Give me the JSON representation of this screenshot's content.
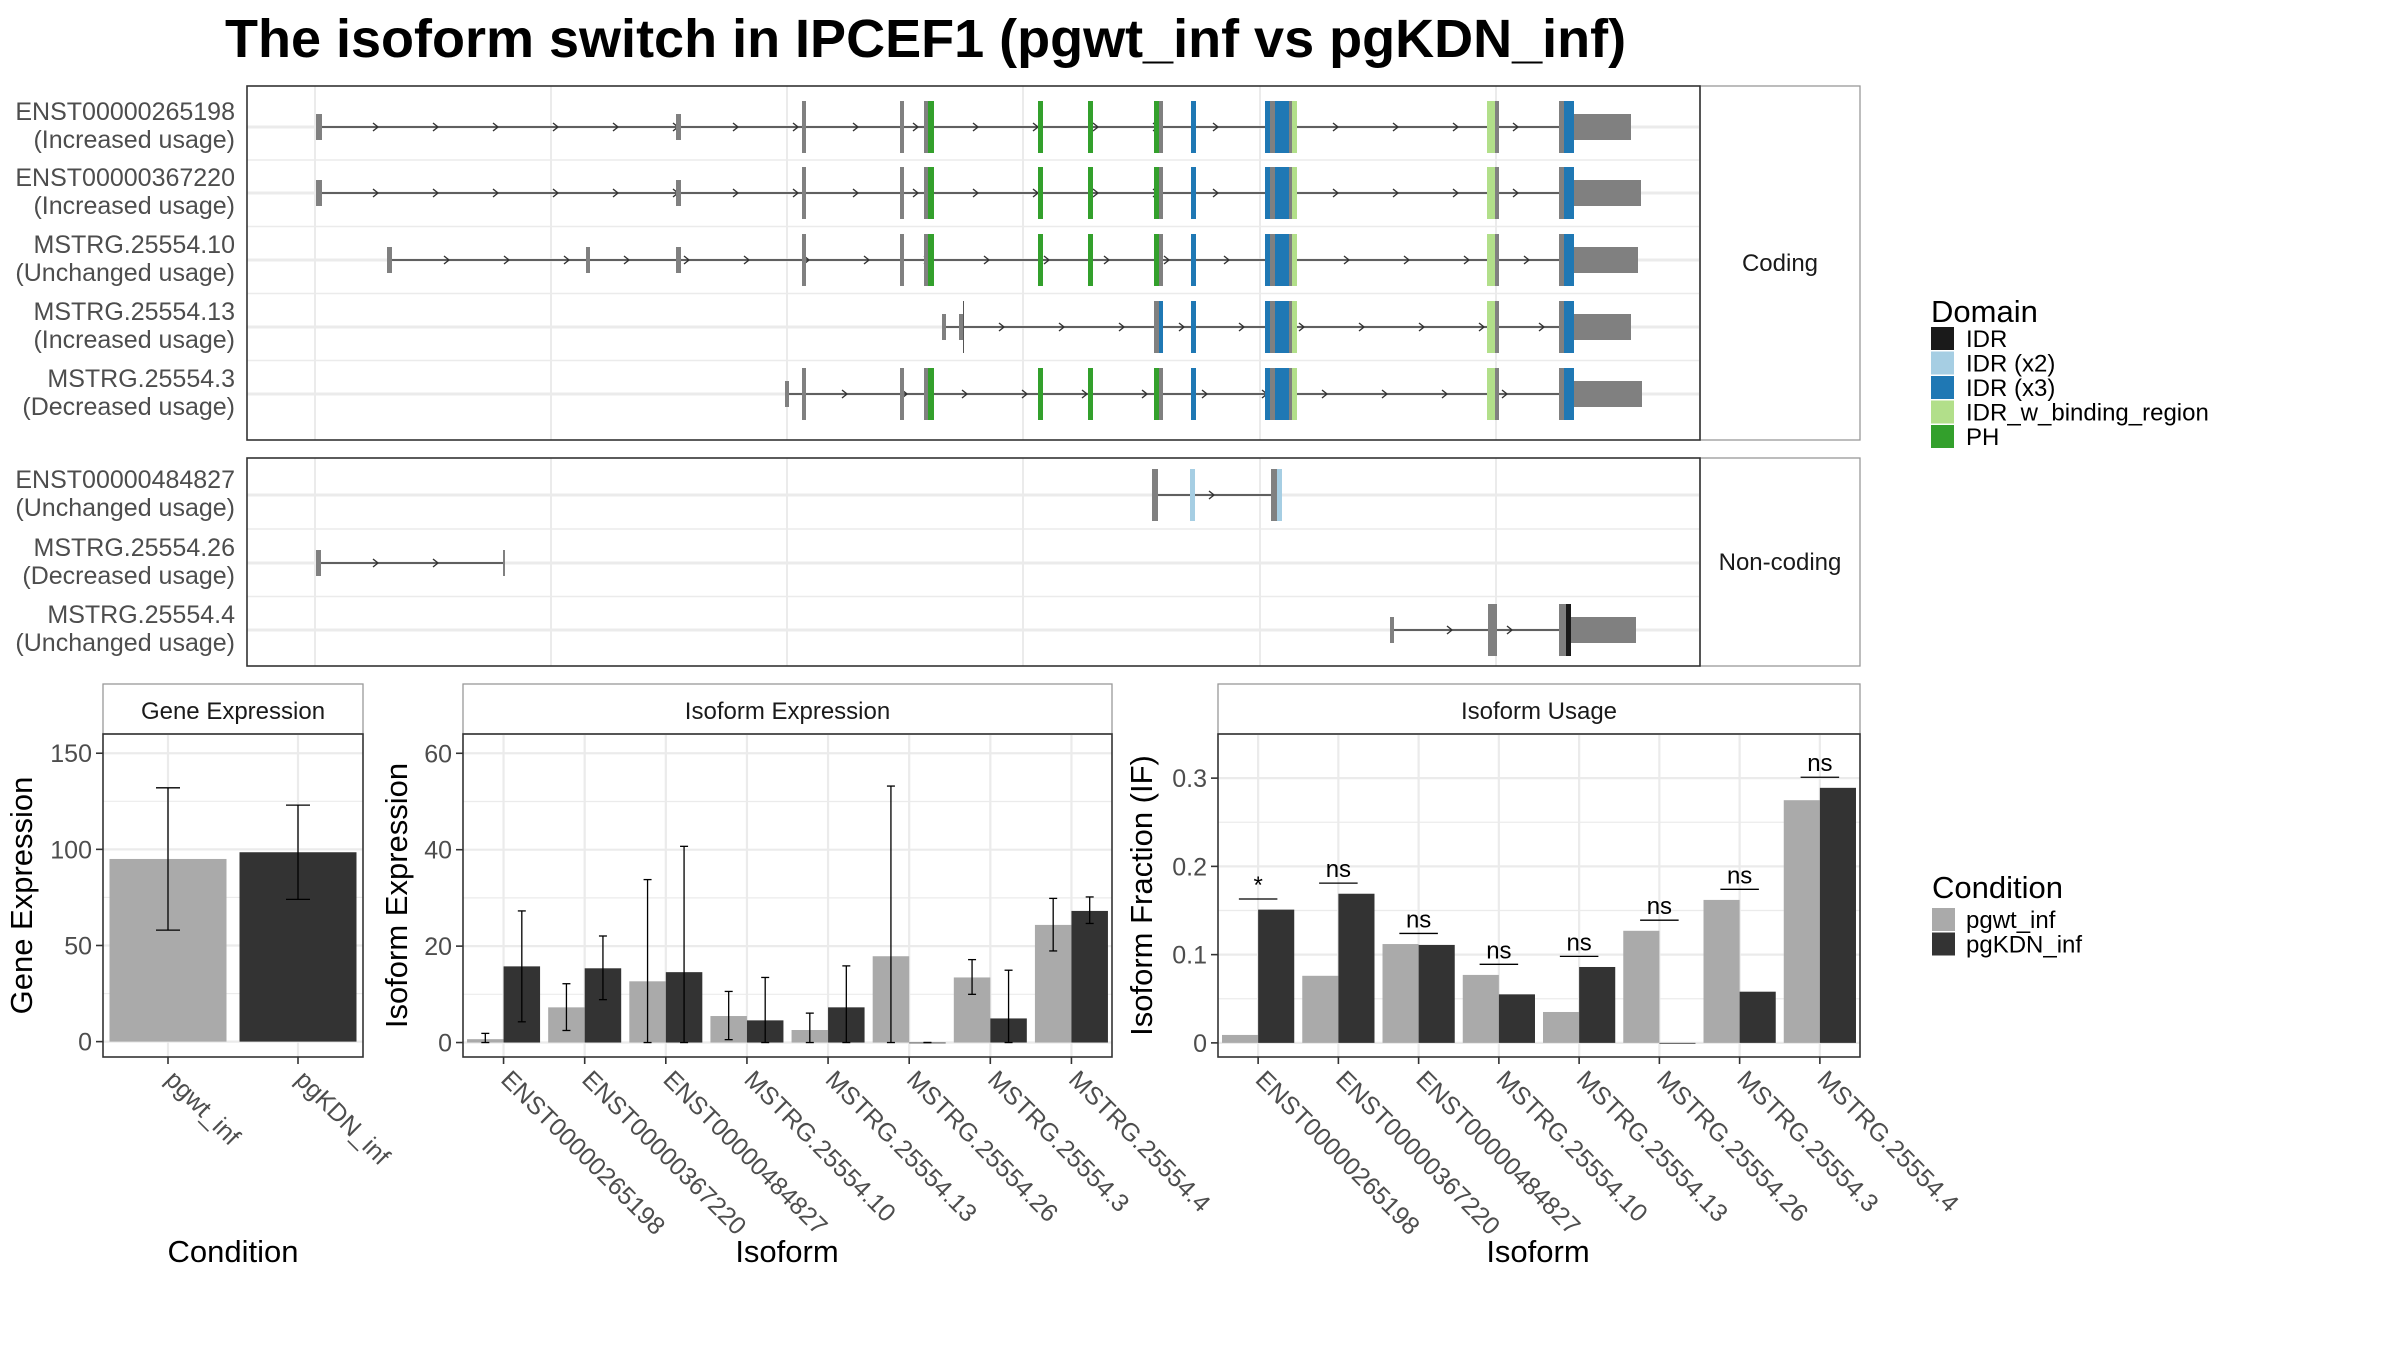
{
  "title": "The isoform switch in IPCEF1 (pgwt_inf vs pgKDN_inf)",
  "chart_data": [
    {
      "type": "diagram",
      "name": "transcript-structures",
      "facets": [
        {
          "label": "Coding",
          "transcripts": [
            {
              "id": "ENST00000265198",
              "usage": "(Increased usage)"
            },
            {
              "id": "ENST00000367220",
              "usage": "(Increased usage)"
            },
            {
              "id": "MSTRG.25554.10",
              "usage": "(Unchanged usage)"
            },
            {
              "id": "MSTRG.25554.13",
              "usage": "(Increased usage)"
            },
            {
              "id": "MSTRG.25554.3",
              "usage": "(Decreased usage)"
            }
          ]
        },
        {
          "label": "Non-coding",
          "transcripts": [
            {
              "id": "ENST00000484827",
              "usage": "(Unchanged usage)"
            },
            {
              "id": "MSTRG.25554.26",
              "usage": "(Decreased usage)"
            },
            {
              "id": "MSTRG.25554.4",
              "usage": "(Unchanged usage)"
            }
          ]
        }
      ],
      "domain_legend": {
        "title": "Domain",
        "items": [
          {
            "label": "IDR",
            "color": "#1a1a1a"
          },
          {
            "label": "IDR (x2)",
            "color": "#a6cee3"
          },
          {
            "label": "IDR (x3)",
            "color": "#1f78b4"
          },
          {
            "label": "IDR_w_binding_region",
            "color": "#b2df8a"
          },
          {
            "label": "PH",
            "color": "#33a02c"
          }
        ]
      },
      "exon_color": "#808080"
    },
    {
      "type": "bar",
      "name": "gene-expression",
      "title": "Gene Expression",
      "xlabel": "Condition",
      "ylabel": "Gene Expression",
      "categories": [
        "pgwt_inf",
        "pgKDN_inf"
      ],
      "values": [
        95,
        98.5
      ],
      "errors": [
        [
          58,
          132
        ],
        [
          74,
          123
        ]
      ],
      "yticks": [
        0,
        50,
        100,
        150
      ],
      "ylim": [
        -8,
        160
      ]
    },
    {
      "type": "bar",
      "name": "isoform-expression",
      "title": "Isoform Expression",
      "xlabel": "Isoform",
      "ylabel": "Isoform Expression",
      "categories": [
        "ENST00000265198",
        "ENST00000367220",
        "ENST00000484827",
        "MSTRG.25554.10",
        "MSTRG.25554.13",
        "MSTRG.25554.26",
        "MSTRG.25554.3",
        "MSTRG.25554.4"
      ],
      "series": [
        {
          "name": "pgwt_inf",
          "values": [
            0.7,
            7.3,
            12.7,
            5.5,
            2.6,
            17.9,
            13.5,
            24.4
          ],
          "errors": [
            [
              0,
              1.9
            ],
            [
              2.5,
              12.2
            ],
            [
              0,
              33.8
            ],
            [
              0.6,
              10.6
            ],
            [
              0,
              6.1
            ],
            [
              0,
              53.2
            ],
            [
              10.0,
              17.2
            ],
            [
              19.0,
              29.9
            ]
          ]
        },
        {
          "name": "pgKDN_inf",
          "values": [
            15.8,
            15.4,
            14.6,
            4.6,
            7.3,
            0,
            5.0,
            27.3
          ],
          "errors": [
            [
              4.3,
              27.3
            ],
            [
              8.9,
              22.1
            ],
            [
              0,
              40.7
            ],
            [
              0,
              13.5
            ],
            [
              0,
              15.9
            ],
            [
              0,
              0
            ],
            [
              0,
              15.0
            ],
            [
              24.7,
              30.2
            ]
          ]
        }
      ],
      "yticks": [
        0,
        20,
        40,
        60
      ],
      "ylim": [
        -3,
        64
      ]
    },
    {
      "type": "bar",
      "name": "isoform-usage",
      "title": "Isoform Usage",
      "xlabel": "Isoform",
      "ylabel": "Isoform Fraction (IF)",
      "categories": [
        "ENST00000265198",
        "ENST00000367220",
        "ENST00000484827",
        "MSTRG.25554.10",
        "MSTRG.25554.13",
        "MSTRG.25554.26",
        "MSTRG.25554.3",
        "MSTRG.25554.4"
      ],
      "series": [
        {
          "name": "pgwt_inf",
          "values": [
            0.009,
            0.076,
            0.112,
            0.077,
            0.035,
            0.127,
            0.162,
            0.275
          ]
        },
        {
          "name": "pgKDN_inf",
          "values": [
            0.151,
            0.169,
            0.111,
            0.055,
            0.086,
            0.0,
            0.058,
            0.289
          ]
        }
      ],
      "significance": [
        "*",
        "ns",
        "ns",
        "ns",
        "ns",
        "ns",
        "ns",
        "ns"
      ],
      "yticks": [
        0.0,
        0.1,
        0.2,
        0.3
      ],
      "ylim": [
        -0.016,
        0.35
      ]
    }
  ],
  "condition_legend": {
    "title": "Condition",
    "items": [
      {
        "label": "pgwt_inf",
        "color": "#aaaaaa"
      },
      {
        "label": "pgKDN_inf",
        "color": "#333333"
      }
    ]
  }
}
